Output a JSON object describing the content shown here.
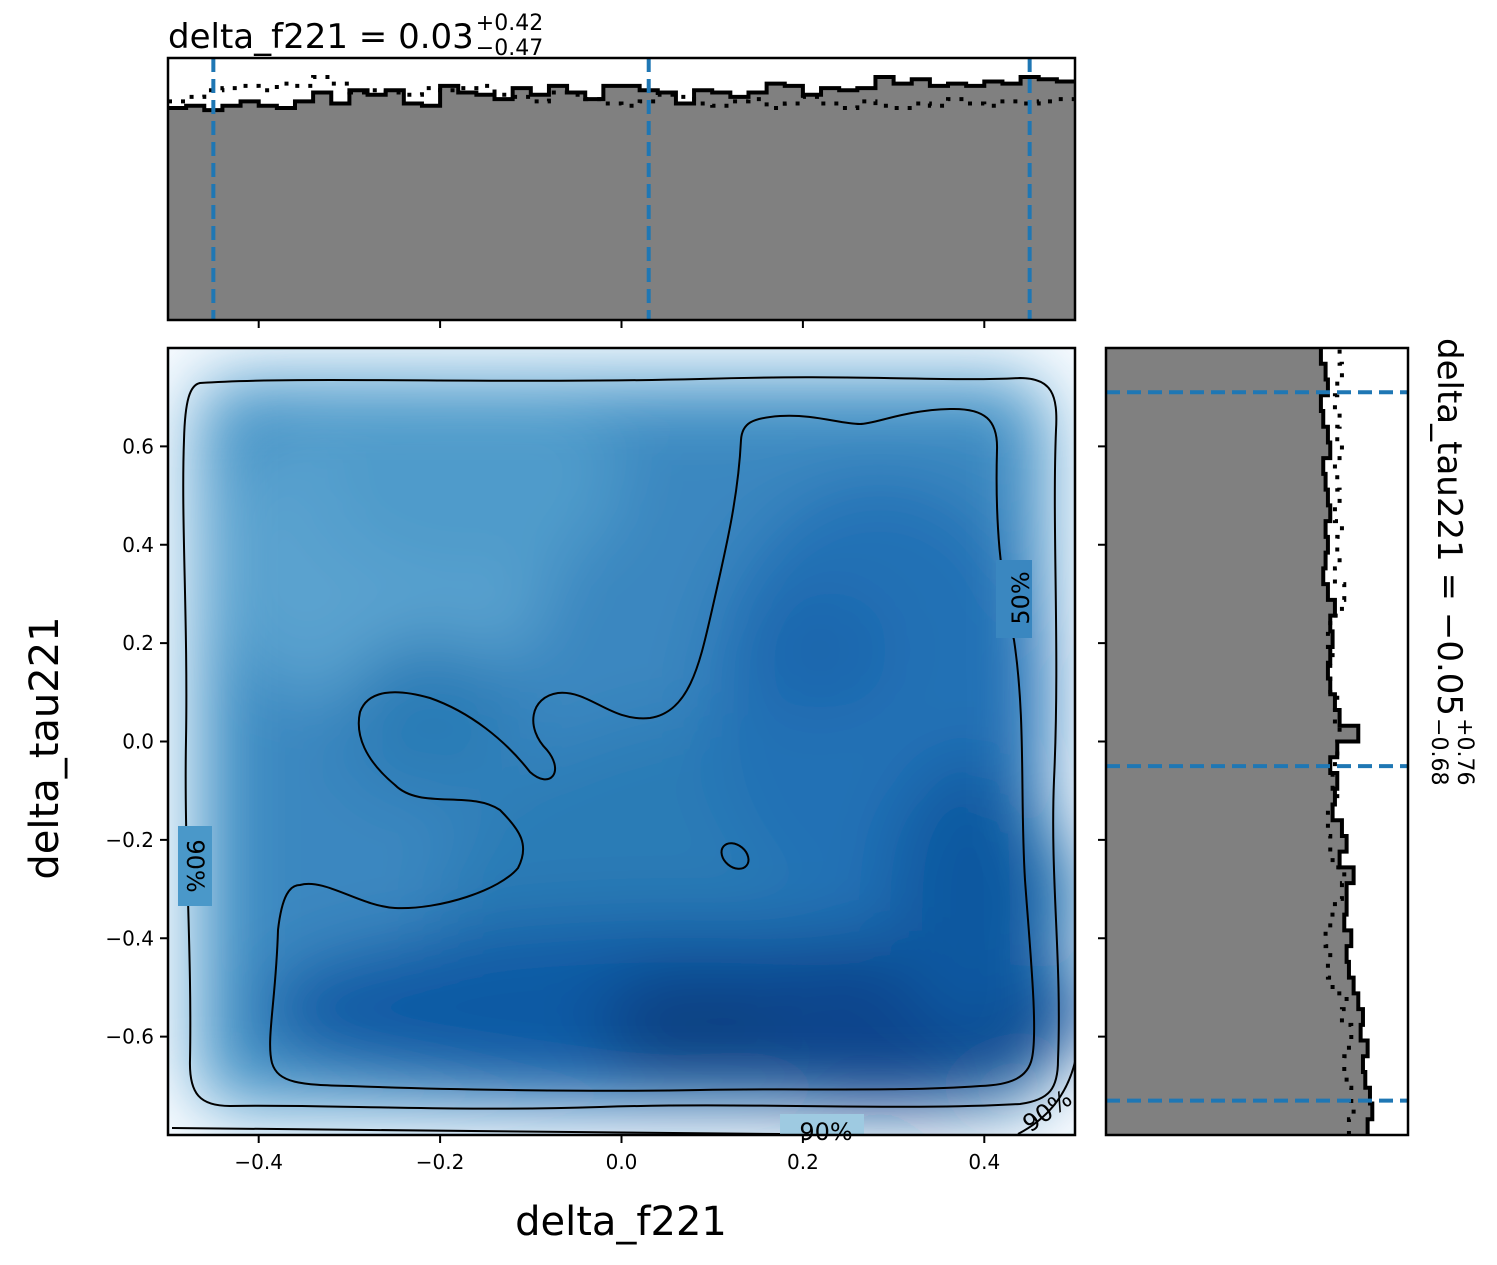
{
  "chart_data": [
    {
      "type": "histogram",
      "panel": "top-marginal",
      "title_main": "delta_f221 = 0.03",
      "title_sup": "+0.42",
      "title_sub": "−0.47",
      "xlim": [
        -0.5,
        0.5
      ],
      "x_ticks": [
        -0.4,
        -0.2,
        0.0,
        0.2,
        0.4
      ],
      "quantile_lines": [
        -0.45,
        0.03,
        0.45
      ],
      "quantile_color": "#1f77b4",
      "fill_color": "#808080",
      "bin_width": 0.02,
      "posterior_counts": [
        96,
        97,
        95,
        97,
        99,
        97,
        96,
        99,
        103,
        98,
        104,
        102,
        104,
        98,
        97,
        106,
        103,
        102,
        100,
        105,
        102,
        106,
        103,
        100,
        106,
        106,
        104,
        103,
        98,
        104,
        103,
        101,
        103,
        107,
        106,
        102,
        105,
        104,
        105,
        110,
        107,
        109,
        106,
        107,
        106,
        108,
        107,
        110,
        109,
        108
      ],
      "prior_counts": [
        99,
        101,
        104,
        105,
        106,
        104,
        107,
        106,
        110,
        107,
        103,
        104,
        103,
        102,
        105,
        104,
        105,
        106,
        102,
        101,
        99,
        103,
        102,
        100,
        98,
        97,
        99,
        102,
        101,
        98,
        97,
        99,
        100,
        96,
        98,
        101,
        98,
        96,
        99,
        97,
        96,
        98,
        97,
        100,
        98,
        97,
        99,
        98,
        99,
        100
      ]
    },
    {
      "type": "heatmap",
      "panel": "joint",
      "xlabel": "delta_f221",
      "ylabel": "delta_tau221",
      "xlim": [
        -0.5,
        0.5
      ],
      "ylim": [
        -0.8,
        0.8
      ],
      "x_ticks": [
        -0.4,
        -0.2,
        0.0,
        0.2,
        0.4
      ],
      "y_ticks": [
        -0.6,
        -0.4,
        -0.2,
        0.0,
        0.2,
        0.4,
        0.6
      ],
      "x_tick_labels": [
        "−0.4",
        "−0.2",
        "0.0",
        "0.2",
        "0.4"
      ],
      "y_tick_labels": [
        "−0.6",
        "−0.4",
        "−0.2",
        "0.0",
        "0.2",
        "0.4",
        "0.6"
      ],
      "colormap": "Blues",
      "contour_labels": [
        "50%",
        "90%",
        "90%",
        "90%"
      ]
    },
    {
      "type": "histogram",
      "panel": "right-marginal",
      "orientation": "horizontal",
      "side_label_main": "delta_tau221 = −0.05",
      "side_label_sup": "+0.76",
      "side_label_sub": "−0.68",
      "ylim": [
        -0.8,
        0.8
      ],
      "quantile_lines": [
        -0.73,
        -0.05,
        0.71
      ],
      "quantile_color": "#1f77b4",
      "fill_color": "#808080",
      "bin_width": 0.032,
      "posterior_counts": [
        112,
        114,
        113,
        111,
        110,
        112,
        109,
        110,
        108,
        106,
        104,
        103,
        105,
        102,
        103,
        103,
        106,
        100,
        103,
        101,
        97,
        98,
        99,
        96,
        99,
        108,
        100,
        98,
        96,
        95,
        96,
        97,
        96,
        98,
        95,
        93,
        94,
        95,
        94,
        96,
        95,
        94,
        93,
        96,
        95,
        93,
        92,
        95,
        94,
        92
      ],
      "prior_counts": [
        104,
        106,
        105,
        103,
        102,
        104,
        105,
        101,
        103,
        97,
        95,
        96,
        94,
        96,
        98,
        101,
        102,
        97,
        96,
        95,
        95,
        99,
        97,
        98,
        99,
        100,
        98,
        99,
        96,
        96,
        97,
        95,
        96,
        101,
        102,
        98,
        100,
        99,
        101,
        98,
        100,
        99,
        98,
        101,
        99,
        100,
        98,
        99,
        101,
        100
      ]
    }
  ]
}
